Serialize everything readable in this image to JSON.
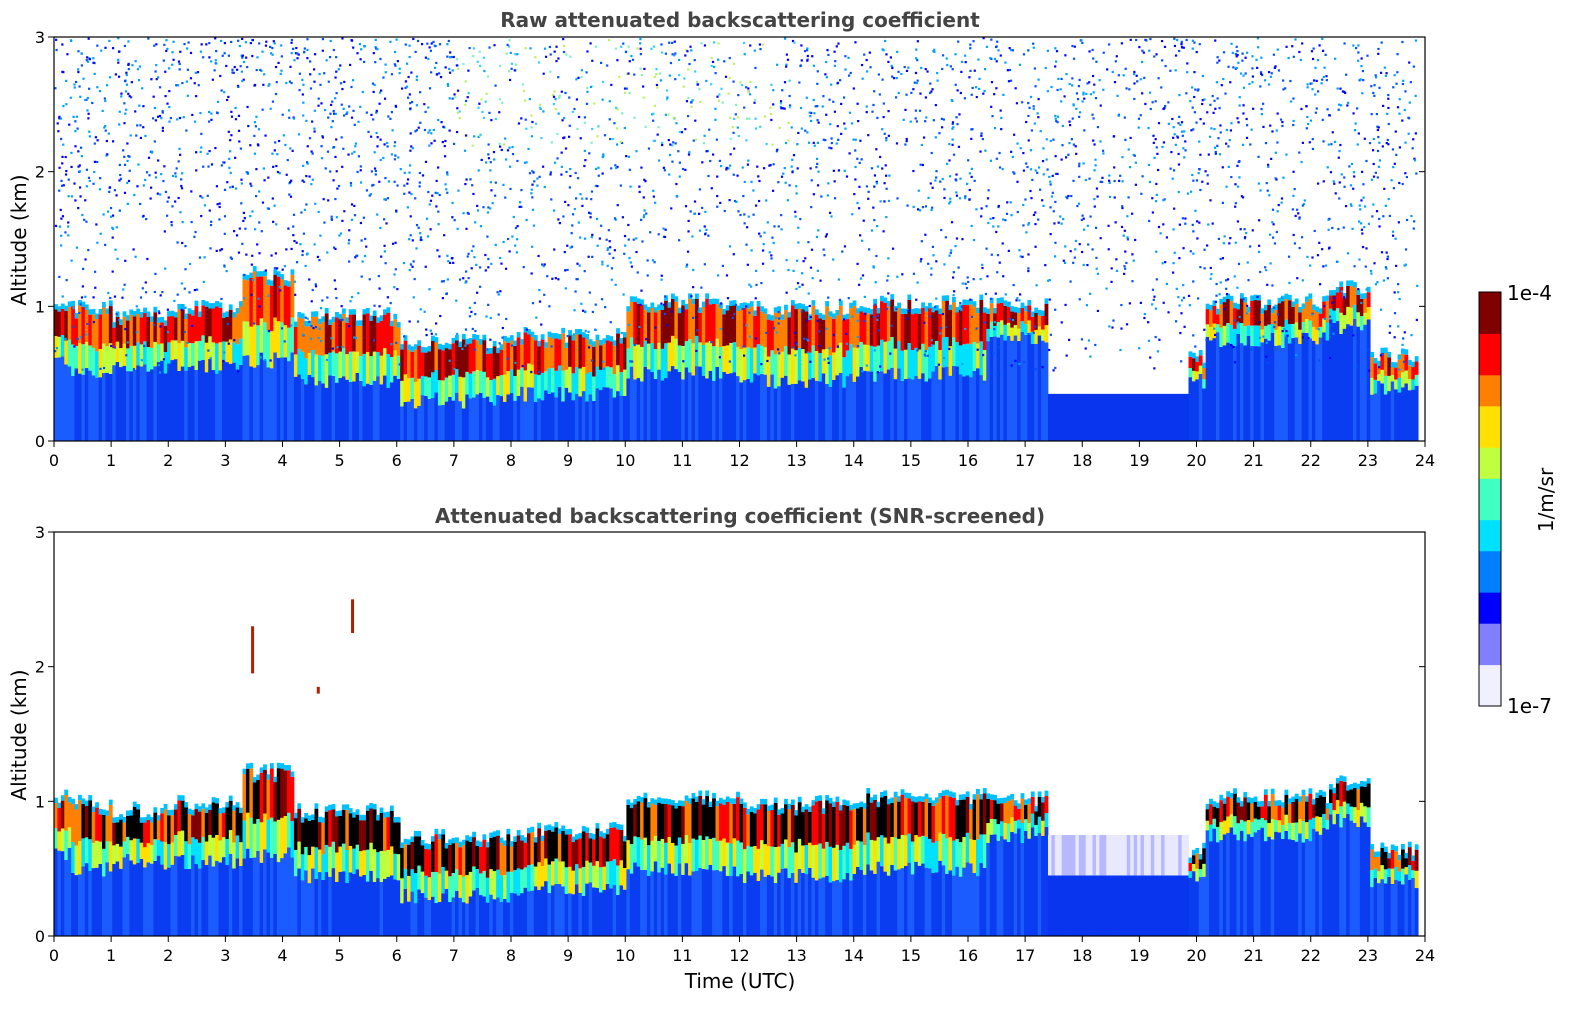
{
  "chart_data": [
    {
      "type": "heatmap",
      "title": "Raw attenuated backscattering coefficient",
      "ylabel": "Altitude (km)",
      "xlabel": "",
      "xlim": [
        0,
        24
      ],
      "ylim": [
        0,
        3
      ],
      "x_ticks": [
        "0",
        "1",
        "2",
        "3",
        "4",
        "5",
        "6",
        "7",
        "8",
        "9",
        "10",
        "11",
        "12",
        "13",
        "14",
        "15",
        "16",
        "17",
        "18",
        "19",
        "20",
        "21",
        "22",
        "23",
        "24"
      ],
      "y_ticks": [
        "0",
        "1",
        "2",
        "3"
      ],
      "data_end_time": 23.85,
      "cloud_layers": [
        {
          "start": 0,
          "end": 0.3,
          "base": 0.6,
          "top": 1.0
        },
        {
          "start": 0.3,
          "end": 1.0,
          "base": 0.5,
          "top": 0.95
        },
        {
          "start": 1.0,
          "end": 2.0,
          "base": 0.55,
          "top": 0.9
        },
        {
          "start": 2.0,
          "end": 3.3,
          "base": 0.55,
          "top": 0.95
        },
        {
          "start": 3.3,
          "end": 4.2,
          "base": 0.6,
          "top": 1.2
        },
        {
          "start": 4.2,
          "end": 6.0,
          "base": 0.45,
          "top": 0.9
        },
        {
          "start": 6.0,
          "end": 8.0,
          "base": 0.3,
          "top": 0.7
        },
        {
          "start": 8.0,
          "end": 10.0,
          "base": 0.35,
          "top": 0.75
        },
        {
          "start": 10.0,
          "end": 12.0,
          "base": 0.5,
          "top": 1.0
        },
        {
          "start": 12.0,
          "end": 14.0,
          "base": 0.45,
          "top": 0.95
        },
        {
          "start": 14.0,
          "end": 16.3,
          "base": 0.5,
          "top": 1.0
        },
        {
          "start": 16.3,
          "end": 17.4,
          "base": 0.75,
          "top": 0.98
        },
        {
          "start": 19.8,
          "end": 20.1,
          "base": 0.45,
          "top": 0.6
        },
        {
          "start": 20.1,
          "end": 22.3,
          "base": 0.75,
          "top": 1.0
        },
        {
          "start": 22.3,
          "end": 23.0,
          "base": 0.85,
          "top": 1.1
        },
        {
          "start": 23.0,
          "end": 23.85,
          "base": 0.4,
          "top": 0.6
        }
      ],
      "screened": false
    },
    {
      "type": "heatmap",
      "title": "Attenuated backscattering coefficient (SNR-screened)",
      "ylabel": "Altitude (km)",
      "xlabel": "Time (UTC)",
      "xlim": [
        0,
        24
      ],
      "ylim": [
        0,
        3
      ],
      "x_ticks": [
        "0",
        "1",
        "2",
        "3",
        "4",
        "5",
        "6",
        "7",
        "8",
        "9",
        "10",
        "11",
        "12",
        "13",
        "14",
        "15",
        "16",
        "17",
        "18",
        "19",
        "20",
        "21",
        "22",
        "23",
        "24"
      ],
      "y_ticks": [
        "0",
        "1",
        "2",
        "3"
      ],
      "data_end_time": 23.85,
      "cloud_layers": [
        {
          "start": 0,
          "end": 0.3,
          "base": 0.6,
          "top": 1.0
        },
        {
          "start": 0.3,
          "end": 1.0,
          "base": 0.5,
          "top": 0.95
        },
        {
          "start": 1.0,
          "end": 2.0,
          "base": 0.55,
          "top": 0.9
        },
        {
          "start": 2.0,
          "end": 3.3,
          "base": 0.55,
          "top": 0.95
        },
        {
          "start": 3.3,
          "end": 4.2,
          "base": 0.6,
          "top": 1.2
        },
        {
          "start": 4.2,
          "end": 6.0,
          "base": 0.45,
          "top": 0.9
        },
        {
          "start": 6.0,
          "end": 8.0,
          "base": 0.3,
          "top": 0.7
        },
        {
          "start": 8.0,
          "end": 10.0,
          "base": 0.35,
          "top": 0.75
        },
        {
          "start": 10.0,
          "end": 12.0,
          "base": 0.5,
          "top": 1.0
        },
        {
          "start": 12.0,
          "end": 14.0,
          "base": 0.45,
          "top": 0.95
        },
        {
          "start": 14.0,
          "end": 16.3,
          "base": 0.5,
          "top": 1.0
        },
        {
          "start": 16.3,
          "end": 17.4,
          "base": 0.75,
          "top": 0.98
        },
        {
          "start": 19.8,
          "end": 20.1,
          "base": 0.45,
          "top": 0.6
        },
        {
          "start": 20.1,
          "end": 22.3,
          "base": 0.75,
          "top": 1.0
        },
        {
          "start": 22.3,
          "end": 23.0,
          "base": 0.85,
          "top": 1.1
        },
        {
          "start": 23.0,
          "end": 23.85,
          "base": 0.4,
          "top": 0.6
        }
      ],
      "screened": true
    }
  ],
  "colorbar": {
    "max_label": "1e-4",
    "min_label": "1e-7",
    "unit_label": "1/m/sr",
    "scale": "log",
    "colormap": [
      "#f0f0ff",
      "#8080ff",
      "#0000ff",
      "#0080ff",
      "#00e0ff",
      "#40ffc0",
      "#c0ff40",
      "#ffe000",
      "#ff8000",
      "#ff0000",
      "#800000"
    ]
  }
}
